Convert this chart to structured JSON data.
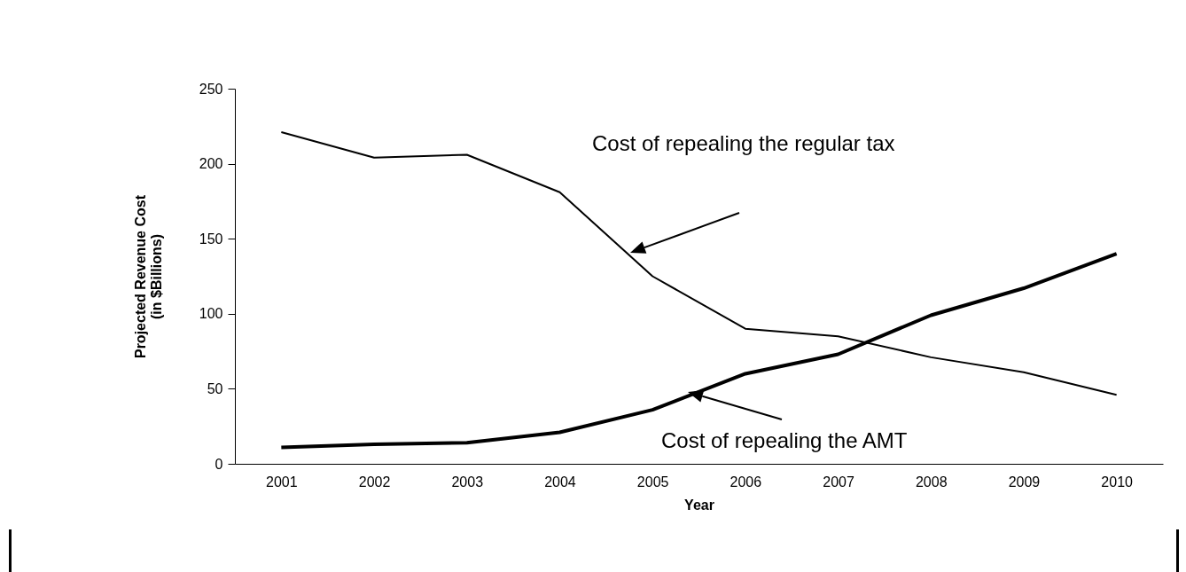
{
  "chart_data": {
    "type": "line",
    "xlabel": "Year",
    "ylabel": "Projected Revenue Cost\n(in $Billions)",
    "categories": [
      "2001",
      "2002",
      "2003",
      "2004",
      "2005",
      "2006",
      "2007",
      "2008",
      "2009",
      "2010"
    ],
    "series": [
      {
        "color": "#000000",
        "values": [
          221,
          204,
          206,
          181,
          125,
          90,
          85,
          71,
          61,
          46
        ]
      },
      {
        "color": "#000000",
        "values": [
          11,
          13,
          14,
          21,
          36,
          60,
          73,
          99,
          117,
          140
        ]
      }
    ],
    "ylim": [
      0,
      250
    ],
    "yticks": [
      0,
      50,
      100,
      150,
      200,
      250
    ],
    "grid": false,
    "marker": "none",
    "line_style": "solid",
    "annotations": [
      "Cost of repealing the regular tax",
      "Cost of repealing the AMT"
    ]
  }
}
